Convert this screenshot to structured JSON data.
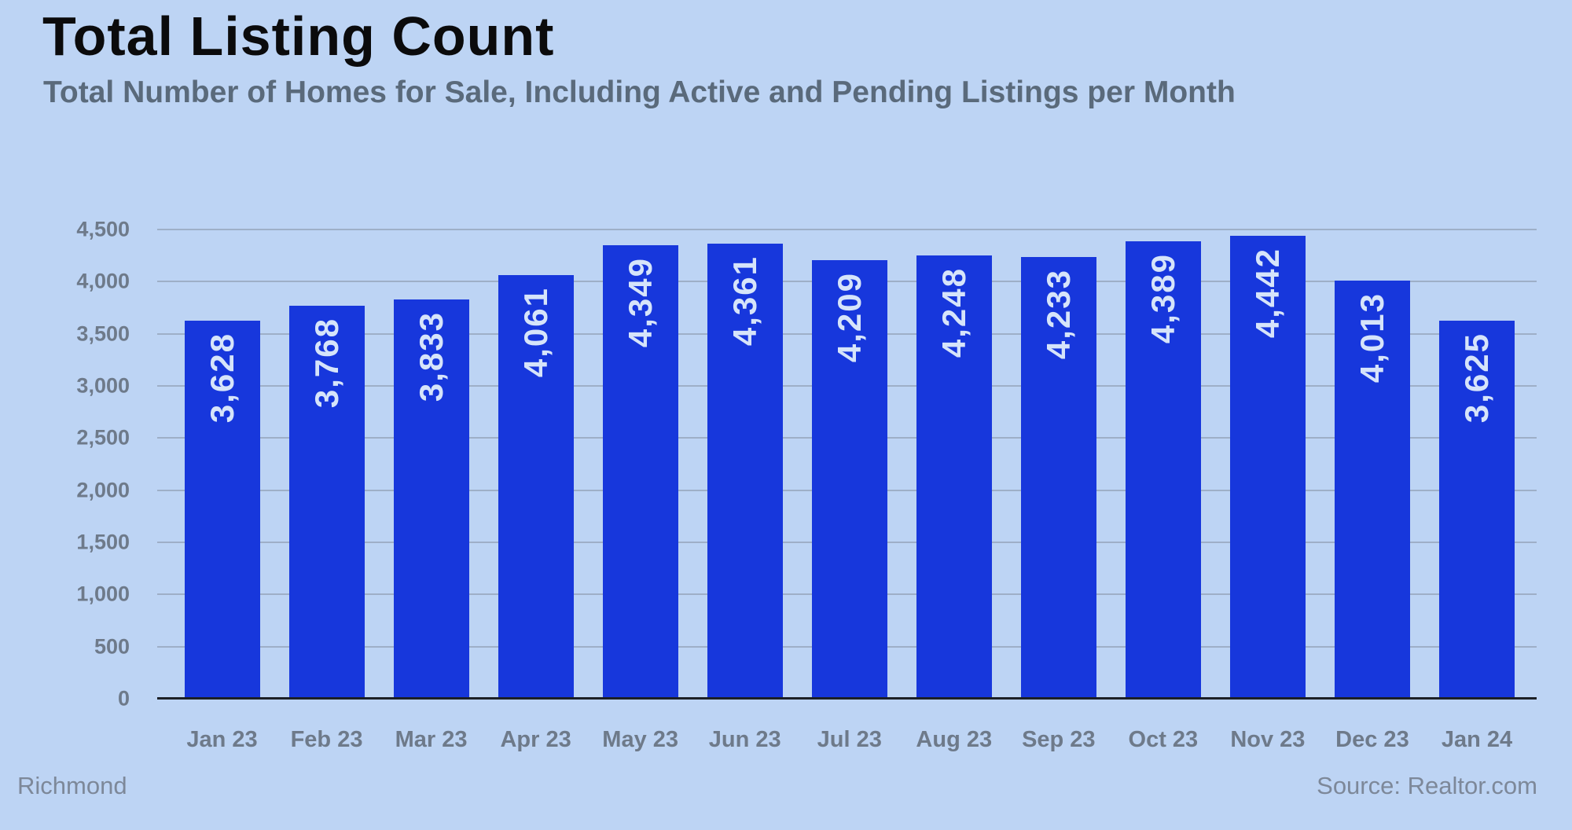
{
  "header": {
    "title": "Total Listing Count",
    "subtitle": "Total Number of Homes for Sale, Including Active and Pending Listings per Month"
  },
  "footer": {
    "left": "Richmond",
    "right": "Source: Realtor.com"
  },
  "colors": {
    "background": "#bdd4f4",
    "bar": "#1737dc",
    "bar_label": "#d6e4fa",
    "gridline": "#94a3b8",
    "axis_line": "#1c2026",
    "tick_label": "#6e7a8a",
    "title": "#0b0b0c",
    "subtitle": "#5a6a7b",
    "footer_text": "#7d8899"
  },
  "chart_data": {
    "type": "bar",
    "title": "Total Listing Count",
    "subtitle": "Total Number of Homes for Sale, Including Active and Pending Listings per Month",
    "categories": [
      "Jan 23",
      "Feb 23",
      "Mar 23",
      "Apr 23",
      "May 23",
      "Jun 23",
      "Jul 23",
      "Aug 23",
      "Sep 23",
      "Oct 23",
      "Nov 23",
      "Dec 23",
      "Jan 24"
    ],
    "values": [
      3628,
      3768,
      3833,
      4061,
      4349,
      4361,
      4209,
      4248,
      4233,
      4389,
      4442,
      4013,
      3625
    ],
    "value_labels": [
      "3,628",
      "3,768",
      "3,833",
      "4,061",
      "4,349",
      "4,361",
      "4,209",
      "4,248",
      "4,233",
      "4,389",
      "4,442",
      "4,013",
      "3,625"
    ],
    "xlabel": "",
    "ylabel": "",
    "ylim": [
      0,
      4500
    ],
    "ytick_step": 500,
    "ytick_labels": [
      "0",
      "500",
      "1,000",
      "1,500",
      "2,000",
      "2,500",
      "3,000",
      "3,500",
      "4,000",
      "4,500"
    ],
    "grid": "horizontal",
    "legend": "none",
    "bar_label_rotation": -90,
    "source": "Source: Realtor.com",
    "region": "Richmond"
  }
}
